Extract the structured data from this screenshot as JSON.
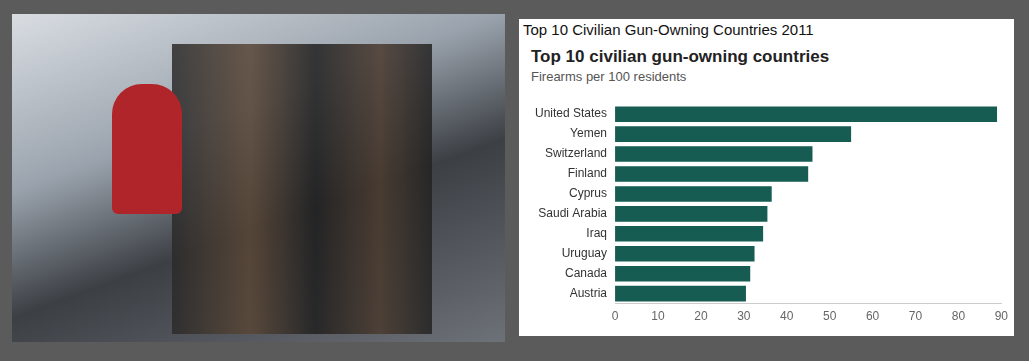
{
  "caption": "Top 10 Civilian Gun-Owning Countries 2011",
  "chart_data": {
    "type": "bar",
    "orientation": "horizontal",
    "title": "Top 10 civilian gun-owning countries",
    "subtitle": "Firearms per 100 residents",
    "categories": [
      "United States",
      "Yemen",
      "Switzerland",
      "Finland",
      "Cyprus",
      "Saudi Arabia",
      "Iraq",
      "Uruguay",
      "Canada",
      "Austria"
    ],
    "values": [
      89,
      55,
      46,
      45,
      36.5,
      35.5,
      34.5,
      32.5,
      31.5,
      30.5
    ],
    "color": "#165c52",
    "xlim": [
      0,
      90
    ],
    "xticks": [
      0,
      10,
      20,
      30,
      40,
      50,
      60,
      70,
      80,
      90
    ],
    "grid": false
  }
}
